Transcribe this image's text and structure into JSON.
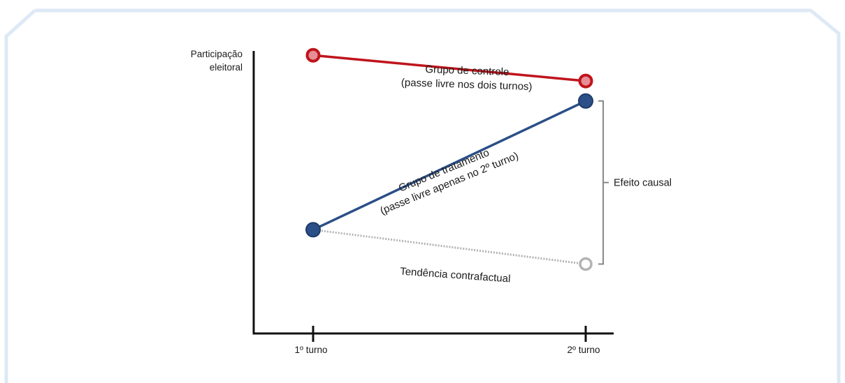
{
  "colors": {
    "frame": "#dde9f5",
    "axis": "#111111",
    "control": "#c0141c",
    "control_fill": "#e58f95",
    "treatment": "#2b4f87",
    "treatment_fill": "#2b4f87",
    "counterfactual": "#b3b3b3",
    "bracket": "#888888"
  },
  "chart_data": {
    "type": "line",
    "title": "",
    "ylabel": [
      "Participação",
      "eleitoral"
    ],
    "xlabel": "",
    "categories": [
      "1º turno",
      "2º turno"
    ],
    "ylim": [
      0,
      100
    ],
    "grid": false,
    "series": [
      {
        "key": "control",
        "name": [
          "Grupo de controle",
          "(passe livre nos dois turnos)"
        ],
        "values": [
          88,
          79
        ],
        "style": "solid",
        "marker": "ring-filled"
      },
      {
        "key": "treatment",
        "name": [
          "Grupo de tratamento",
          "(passe livre apenas no 2º turno)"
        ],
        "values": [
          27,
          72
        ],
        "style": "solid",
        "marker": "filled"
      },
      {
        "key": "counterfactual",
        "name": [
          "Tendência contrafactual"
        ],
        "values": [
          27,
          15
        ],
        "style": "dotted",
        "marker": "hollow-end"
      }
    ],
    "annotations": [
      {
        "key": "effect",
        "text": "Efeito causal",
        "from_series": "counterfactual",
        "to_series": "treatment",
        "at_category": 1
      }
    ]
  }
}
